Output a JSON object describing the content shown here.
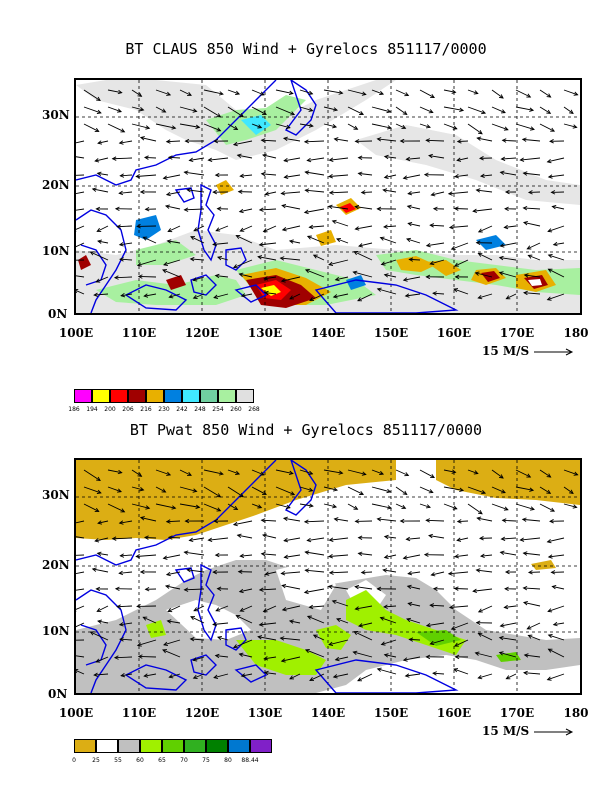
{
  "top_panel": {
    "title": "BT CLAUS 850 Wind + Gyrelocs 851117/0000",
    "lat_labels": [
      "30N",
      "20N",
      "10N",
      "0N"
    ],
    "lon_labels": [
      "100E",
      "110E",
      "120E",
      "130E",
      "140E",
      "150E",
      "160E",
      "170E",
      "180"
    ],
    "scale_label": "15 M/S",
    "legend_colors": [
      "#ff00ff",
      "#ffff00",
      "#ff0000",
      "#a00000",
      "#e8b000",
      "#0080e0",
      "#40e8ff",
      "#70d0a0",
      "#a8f0a0",
      "#e0e0e0"
    ],
    "legend_ticks": [
      "186",
      "194",
      "200",
      "206",
      "216",
      "230",
      "242",
      "248",
      "254",
      "260",
      "268"
    ]
  },
  "bottom_panel": {
    "title": "BT Pwat 850 Wind + Gyrelocs 851117/0000",
    "lat_labels": [
      "30N",
      "20N",
      "10N",
      "0N"
    ],
    "lon_labels": [
      "100E",
      "110E",
      "120E",
      "130E",
      "140E",
      "150E",
      "160E",
      "170E",
      "180"
    ],
    "scale_label": "15 M/S",
    "legend_colors": [
      "#dcae14",
      "#ffffff",
      "#c0c0c0",
      "#a0f000",
      "#60d000",
      "#30b020",
      "#008000",
      "#0078d0",
      "#8020c8"
    ],
    "legend_ticks": [
      "0",
      "25",
      "55",
      "60",
      "65",
      "70",
      "75",
      "80",
      "88.44"
    ]
  }
}
